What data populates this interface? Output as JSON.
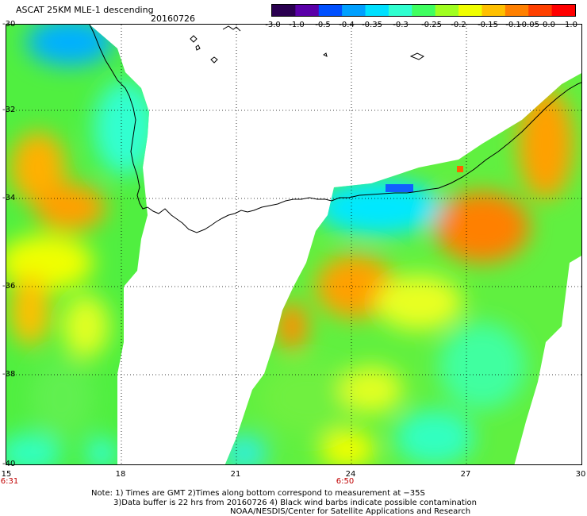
{
  "header": {
    "title": "ASCAT 25KM MLE-1 descending",
    "date": "20160726"
  },
  "colorbar": {
    "labels": [
      "-3.0",
      "-1.0",
      "-0.5",
      "-0.4",
      "-0.35",
      "-0.3",
      "-0.25",
      "-0.2",
      "-0.15",
      "-0.1",
      "-0.05",
      "0.0",
      "1.0"
    ],
    "colors": [
      "#2a0050",
      "#5a00a8",
      "#0050ff",
      "#00a0ff",
      "#00e0ff",
      "#30ffd0",
      "#40ff60",
      "#a0ff20",
      "#f0ff00",
      "#ffc000",
      "#ff8000",
      "#ff4000",
      "#ff0000"
    ]
  },
  "axes": {
    "lat_labels": [
      "-30",
      "-32",
      "-34",
      "-36",
      "-38",
      "-40"
    ],
    "lon_labels": [
      "15",
      "18",
      "21",
      "24",
      "27",
      "30"
    ]
  },
  "times": [
    "6:31",
    "6:50"
  ],
  "notes": [
    "Note: 1) Times are GMT 2)Times along bottom correspond to measurement at −35S",
    "3)Data buffer is 22 hrs from 20160726 4) Black wind barbs indicate possible contamination",
    "NOAA/NESDIS/Center for Satellite Applications and Research"
  ]
}
